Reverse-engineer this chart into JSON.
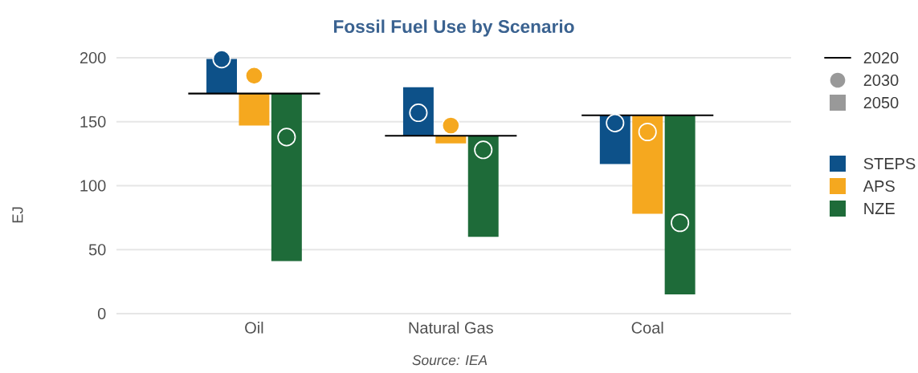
{
  "chart_data": {
    "type": "bar",
    "title": "Fossil Fuel Use by Scenario",
    "ylabel": "EJ",
    "categories": [
      "Oil",
      "Natural Gas",
      "Coal"
    ],
    "series": [
      {
        "type": "scatter",
        "marker": "circle",
        "color": "#0d5189",
        "x": [
          "Oil",
          "Natural Gas",
          "Coal"
        ],
        "values": [
          199,
          157,
          149
        ]
      },
      {
        "type": "scatter",
        "marker": "circle",
        "color": "#f5a81f",
        "x": [
          "Oil",
          "Natural Gas",
          "Coal"
        ],
        "values": [
          186,
          147,
          142
        ]
      },
      {
        "type": "scatter",
        "marker": "circle",
        "color": "#1e6b39",
        "x": [
          "Oil",
          "Natural Gas",
          "Coal"
        ],
        "values": [
          138,
          128,
          71
        ]
      },
      {
        "name": "STEPS",
        "color": "#0d5189",
        "base": [
          172,
          139,
          155
        ],
        "values": [
          27,
          38,
          -38
        ]
      },
      {
        "name": "APS",
        "color": "#f5a81f",
        "base": [
          172,
          139,
          155
        ],
        "values": [
          -25,
          -6,
          -77
        ]
      },
      {
        "name": "NZE",
        "color": "#1e6b39",
        "base": [
          172,
          139,
          155
        ],
        "values": [
          -131,
          -79,
          -140
        ]
      }
    ],
    "ylim": [
      0,
      200
    ],
    "yticks": [
      0,
      50,
      100,
      150,
      200
    ],
    "grid": "y",
    "legend": "right",
    "ref_lines": [
      {
        "axis": "y",
        "value": 172,
        "color": "#000000"
      },
      {
        "axis": "y",
        "value": 139,
        "color": "#000000"
      },
      {
        "axis": "y",
        "value": 155,
        "color": "#000000"
      }
    ],
    "annotations": [
      "Source: IEA",
      "2020",
      "2030",
      "2050"
    ]
  }
}
